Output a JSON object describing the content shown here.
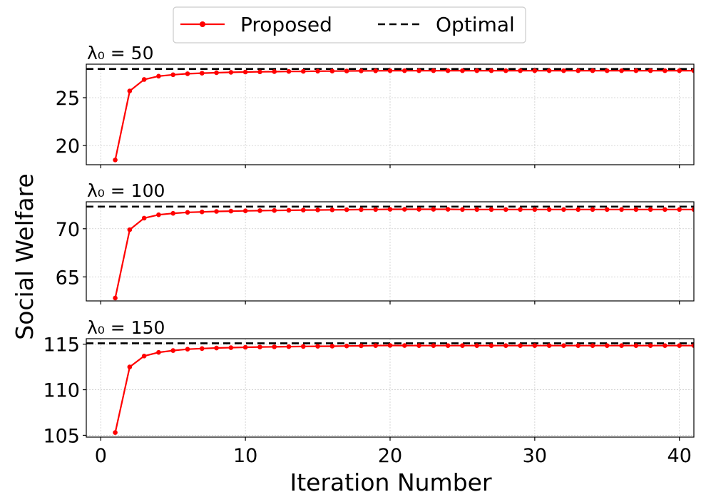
{
  "legend": {
    "proposed_label": "Proposed",
    "optimal_label": "Optimal"
  },
  "colors": {
    "proposed": "#ff0000",
    "optimal": "#000000",
    "grid": "#cccccc"
  },
  "chart_data": [
    {
      "type": "line",
      "title": "λ₀ = 50",
      "ylabel": "Social Welfare",
      "xlabel": "Iteration Number",
      "xlim": [
        -1,
        41
      ],
      "ylim": [
        18,
        28.5
      ],
      "yticks": [
        20,
        25
      ],
      "xticks": [
        0,
        10,
        20,
        30,
        40
      ],
      "grid": true,
      "legend_position": "top-center",
      "optimal": 28.0,
      "series": [
        {
          "name": "Proposed",
          "x": [
            1,
            2,
            3,
            4,
            5,
            6,
            7,
            8,
            9,
            10,
            11,
            12,
            13,
            14,
            15,
            16,
            17,
            18,
            19,
            20,
            21,
            22,
            23,
            24,
            25,
            26,
            27,
            28,
            29,
            30,
            31,
            32,
            33,
            34,
            35,
            36,
            37,
            38,
            39,
            40,
            41
          ],
          "values": [
            18.5,
            25.7,
            26.9,
            27.25,
            27.4,
            27.5,
            27.56,
            27.61,
            27.65,
            27.68,
            27.7,
            27.72,
            27.74,
            27.75,
            27.77,
            27.78,
            27.79,
            27.8,
            27.81,
            27.82,
            27.82,
            27.82,
            27.82,
            27.82,
            27.82,
            27.82,
            27.82,
            27.82,
            27.82,
            27.82,
            27.82,
            27.82,
            27.82,
            27.82,
            27.82,
            27.82,
            27.82,
            27.82,
            27.82,
            27.82,
            27.82
          ]
        }
      ]
    },
    {
      "type": "line",
      "title": "λ₀ = 100",
      "ylabel": "Social Welfare",
      "xlabel": "Iteration Number",
      "xlim": [
        -1,
        41
      ],
      "ylim": [
        62.5,
        72.8
      ],
      "yticks": [
        65,
        70
      ],
      "xticks": [
        0,
        10,
        20,
        30,
        40
      ],
      "grid": true,
      "optimal": 72.3,
      "series": [
        {
          "name": "Proposed",
          "x": [
            1,
            2,
            3,
            4,
            5,
            6,
            7,
            8,
            9,
            10,
            11,
            12,
            13,
            14,
            15,
            16,
            17,
            18,
            19,
            20,
            21,
            22,
            23,
            24,
            25,
            26,
            27,
            28,
            29,
            30,
            31,
            32,
            33,
            34,
            35,
            36,
            37,
            38,
            39,
            40,
            41
          ],
          "values": [
            62.8,
            69.9,
            71.1,
            71.45,
            71.6,
            71.7,
            71.75,
            71.8,
            71.83,
            71.86,
            71.88,
            71.9,
            71.92,
            71.94,
            71.95,
            71.96,
            71.98,
            71.99,
            72.0,
            72.02,
            72.02,
            72.02,
            72.02,
            72.02,
            72.0,
            72.0,
            72.0,
            72.0,
            72.0,
            72.0,
            72.0,
            72.0,
            72.0,
            72.0,
            72.0,
            72.0,
            72.0,
            72.0,
            72.0,
            72.0,
            72.0
          ]
        }
      ]
    },
    {
      "type": "line",
      "title": "λ₀ = 150",
      "ylabel": "Social Welfare",
      "xlabel": "Iteration Number",
      "xlim": [
        -1,
        41
      ],
      "ylim": [
        104.8,
        115.6
      ],
      "yticks": [
        105,
        110,
        115
      ],
      "xticks": [
        0,
        10,
        20,
        30,
        40
      ],
      "grid": true,
      "optimal": 115.1,
      "series": [
        {
          "name": "Proposed",
          "x": [
            1,
            2,
            3,
            4,
            5,
            6,
            7,
            8,
            9,
            10,
            11,
            12,
            13,
            14,
            15,
            16,
            17,
            18,
            19,
            20,
            21,
            22,
            23,
            24,
            25,
            26,
            27,
            28,
            29,
            30,
            31,
            32,
            33,
            34,
            35,
            36,
            37,
            38,
            39,
            40,
            41
          ],
          "values": [
            105.3,
            112.5,
            113.7,
            114.1,
            114.3,
            114.45,
            114.52,
            114.58,
            114.62,
            114.66,
            114.69,
            114.71,
            114.73,
            114.75,
            114.77,
            114.78,
            114.8,
            114.82,
            114.84,
            114.86,
            114.85,
            114.84,
            114.84,
            114.84,
            114.84,
            114.84,
            114.84,
            114.84,
            114.84,
            114.84,
            114.84,
            114.84,
            114.84,
            114.84,
            114.84,
            114.84,
            114.84,
            114.84,
            114.84,
            114.84,
            114.84
          ]
        }
      ]
    }
  ]
}
